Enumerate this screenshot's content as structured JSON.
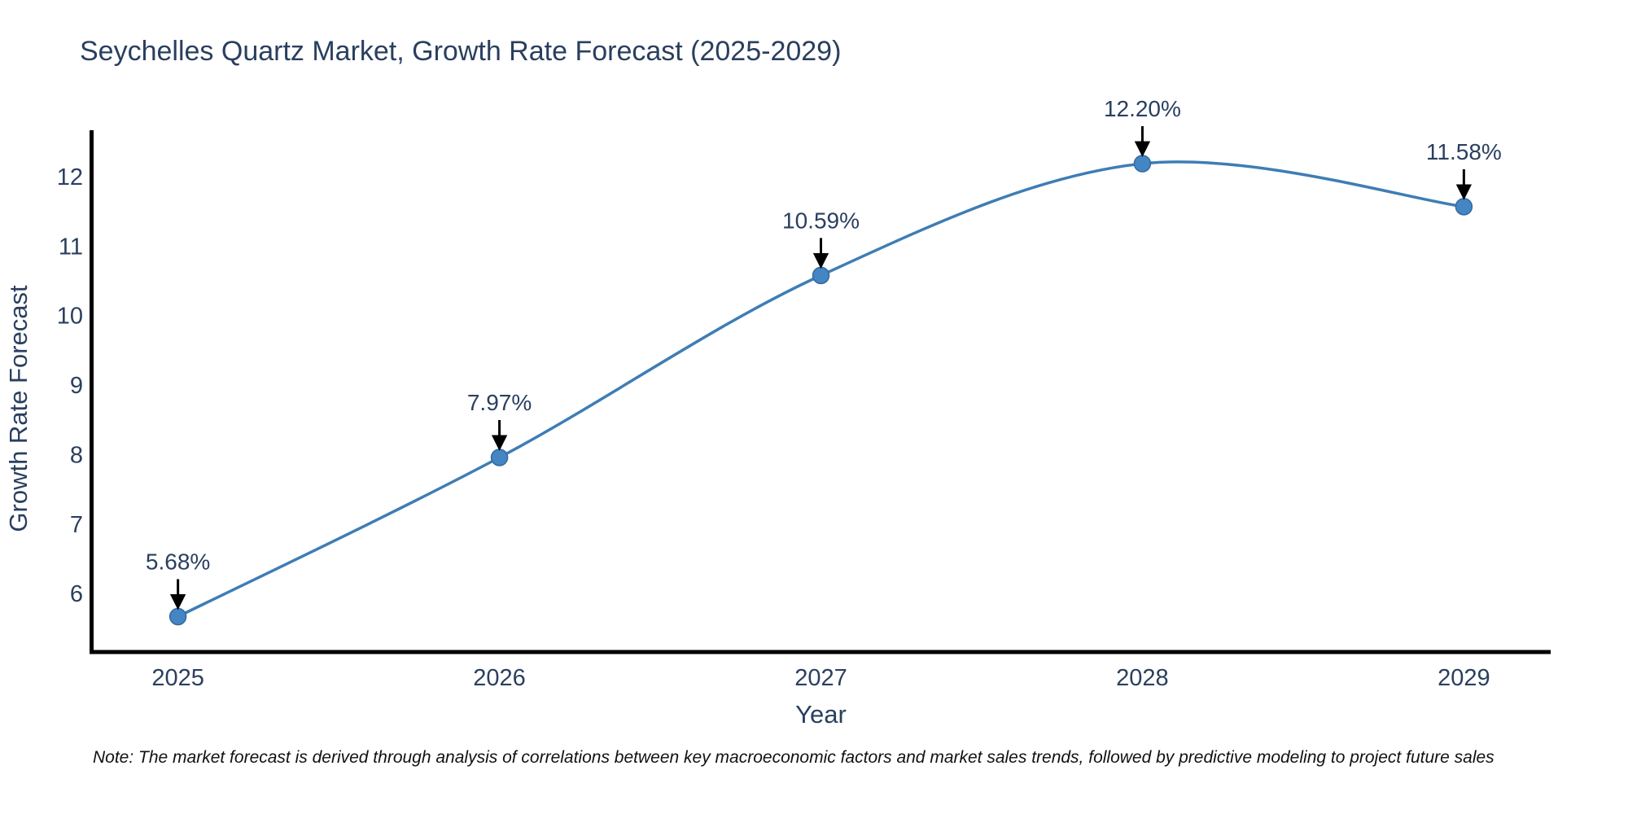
{
  "note": "Note: The market forecast is derived through analysis of correlations between key macroeconomic factors and market sales trends, followed by predictive modeling to project future sales",
  "chart_data": {
    "type": "line",
    "title": "Seychelles Quartz Market, Growth Rate Forecast (2025-2029)",
    "xlabel": "Year",
    "ylabel": "Growth Rate Forecast",
    "x": [
      2025,
      2026,
      2027,
      2028,
      2029
    ],
    "y": [
      5.68,
      7.97,
      10.59,
      12.2,
      11.58
    ],
    "point_labels": [
      "5.68%",
      "7.97%",
      "10.59%",
      "12.20%",
      "11.58%"
    ],
    "x_tick_labels": [
      "2025",
      "2026",
      "2027",
      "2028",
      "2029"
    ],
    "y_ticks": [
      6,
      7,
      8,
      9,
      10,
      11,
      12
    ],
    "xlim": [
      2024.73,
      2029.27
    ],
    "ylim": [
      5.17,
      12.68
    ],
    "line_shape": "spline",
    "grid": false,
    "legend": "none",
    "colors": {
      "line": "#3e7db5",
      "marker_fill": "#4486c4",
      "marker_stroke": "#33699f",
      "axis": "#000000",
      "text": "#2a3f5f",
      "annotation_arrow": "#000000"
    }
  }
}
